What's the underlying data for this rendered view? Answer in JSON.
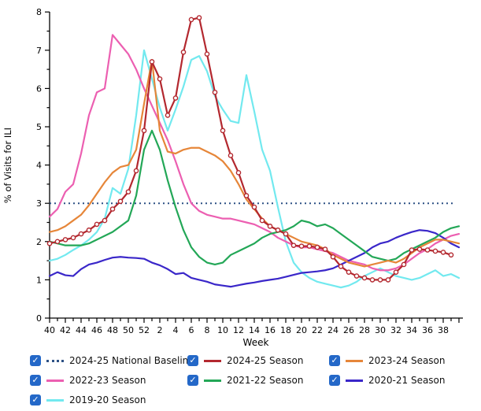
{
  "chart_data": {
    "type": "line",
    "title": "",
    "xlabel": "Week",
    "ylabel": "% of Visits for ILI",
    "ylim": [
      0,
      8
    ],
    "y_ticks": [
      0,
      1,
      2,
      3,
      4,
      5,
      6,
      7,
      8
    ],
    "grid": false,
    "legend_position": "bottom",
    "x_weeks": [
      40,
      41,
      42,
      43,
      44,
      45,
      46,
      47,
      48,
      49,
      50,
      51,
      52,
      1,
      2,
      3,
      4,
      5,
      6,
      7,
      8,
      9,
      10,
      11,
      12,
      13,
      14,
      15,
      16,
      17,
      18,
      19,
      20,
      21,
      22,
      23,
      24,
      25,
      26,
      27,
      28,
      29,
      30,
      31,
      32,
      33,
      34,
      35,
      36,
      37,
      38,
      39,
      40
    ],
    "x_tick_labels_shown": [
      "40",
      "42",
      "44",
      "46",
      "48",
      "50",
      "52",
      "2",
      "4",
      "6",
      "8",
      "10",
      "12",
      "14",
      "16",
      "18",
      "20",
      "22",
      "24",
      "26",
      "28",
      "30",
      "32",
      "34",
      "36",
      "38"
    ],
    "baseline": {
      "label": "2024-25 National Baseline",
      "value": 3,
      "color": "#2d5185",
      "style": "dotted"
    },
    "series": [
      {
        "name": "2019-20 Season",
        "color": "#72e9ef",
        "marker": "none",
        "values": [
          1.5,
          1.55,
          1.65,
          1.78,
          1.9,
          2.05,
          2.25,
          2.6,
          3.4,
          3.25,
          3.9,
          5.3,
          7.0,
          6.25,
          5.5,
          4.9,
          5.45,
          6.05,
          6.75,
          6.85,
          6.45,
          5.8,
          5.45,
          5.15,
          5.1,
          6.35,
          5.4,
          4.4,
          3.85,
          2.9,
          2.0,
          1.45,
          1.2,
          1.05,
          0.95,
          0.9,
          0.85,
          0.8,
          0.85,
          0.95,
          1.1,
          1.2,
          1.3,
          1.2,
          1.1,
          1.05,
          1.0,
          1.05,
          1.15,
          1.25,
          1.1,
          1.15,
          1.05
        ]
      },
      {
        "name": "2022-23 Season",
        "color": "#ec5fb1",
        "marker": "none",
        "values": [
          2.65,
          2.85,
          3.3,
          3.5,
          4.3,
          5.3,
          5.9,
          6.0,
          7.4,
          7.15,
          6.9,
          6.5,
          6.0,
          5.55,
          5.1,
          4.65,
          4.1,
          3.5,
          3.0,
          2.8,
          2.7,
          2.65,
          2.6,
          2.6,
          2.55,
          2.5,
          2.45,
          2.35,
          2.25,
          2.1,
          2.0,
          1.9,
          1.85,
          1.85,
          1.8,
          1.75,
          1.7,
          1.6,
          1.5,
          1.45,
          1.4,
          1.3,
          1.25,
          1.25,
          1.3,
          1.4,
          1.55,
          1.7,
          1.8,
          1.95,
          2.05,
          2.15,
          2.2
        ]
      },
      {
        "name": "2020-21 Season",
        "color": "#3a27c9",
        "marker": "none",
        "values": [
          1.1,
          1.2,
          1.12,
          1.1,
          1.28,
          1.4,
          1.45,
          1.52,
          1.58,
          1.6,
          1.58,
          1.57,
          1.55,
          1.45,
          1.38,
          1.28,
          1.15,
          1.18,
          1.05,
          1.0,
          0.95,
          0.88,
          0.85,
          0.82,
          0.86,
          0.9,
          0.93,
          0.97,
          1.0,
          1.03,
          1.08,
          1.13,
          1.18,
          1.2,
          1.22,
          1.25,
          1.3,
          1.4,
          1.5,
          1.6,
          1.7,
          1.85,
          1.95,
          2.0,
          2.1,
          2.18,
          2.25,
          2.3,
          2.28,
          2.22,
          2.1,
          1.95,
          1.85
        ]
      },
      {
        "name": "2021-22 Season",
        "color": "#23a757",
        "marker": "none",
        "values": [
          2.0,
          1.95,
          1.9,
          1.9,
          1.9,
          1.95,
          2.05,
          2.15,
          2.25,
          2.4,
          2.55,
          3.2,
          4.4,
          4.9,
          4.4,
          3.6,
          2.9,
          2.3,
          1.85,
          1.6,
          1.45,
          1.4,
          1.45,
          1.65,
          1.75,
          1.85,
          1.95,
          2.1,
          2.2,
          2.25,
          2.3,
          2.4,
          2.55,
          2.5,
          2.4,
          2.45,
          2.35,
          2.2,
          2.05,
          1.9,
          1.75,
          1.6,
          1.55,
          1.5,
          1.55,
          1.7,
          1.8,
          1.9,
          2.0,
          2.1,
          2.25,
          2.35,
          2.4
        ]
      },
      {
        "name": "2023-24 Season",
        "color": "#e68639",
        "marker": "none",
        "values": [
          2.25,
          2.3,
          2.4,
          2.55,
          2.7,
          2.95,
          3.25,
          3.55,
          3.8,
          3.95,
          4.0,
          4.4,
          5.6,
          6.75,
          4.9,
          4.35,
          4.3,
          4.4,
          4.45,
          4.45,
          4.35,
          4.25,
          4.1,
          3.85,
          3.5,
          3.1,
          2.85,
          2.6,
          2.4,
          2.3,
          2.2,
          2.1,
          2.0,
          1.95,
          1.9,
          1.8,
          1.65,
          1.55,
          1.45,
          1.4,
          1.35,
          1.4,
          1.45,
          1.5,
          1.45,
          1.55,
          1.7,
          1.85,
          1.95,
          2.05,
          2.05,
          2.0,
          1.95
        ]
      },
      {
        "name": "2024-25 Season",
        "color": "#b3282f",
        "marker": "circle",
        "values": [
          1.95,
          2.0,
          2.05,
          2.1,
          2.2,
          2.3,
          2.45,
          2.55,
          2.85,
          3.05,
          3.3,
          3.85,
          4.9,
          6.7,
          6.25,
          5.3,
          5.75,
          6.95,
          7.8,
          7.85,
          6.9,
          5.9,
          4.9,
          4.25,
          3.8,
          3.2,
          2.9,
          2.55,
          2.4,
          2.3,
          2.2,
          1.9,
          1.88,
          1.88,
          1.85,
          1.8,
          1.6,
          1.35,
          1.2,
          1.1,
          1.05,
          1.0,
          1.0,
          1.0,
          1.2,
          1.4,
          1.78,
          1.8,
          1.78,
          1.75,
          1.72,
          1.65
        ]
      }
    ],
    "legend": {
      "columns": 3,
      "items": [
        {
          "label": "2024-25 National Baseline",
          "color": "#2d5185",
          "style": "dotted",
          "checked": true
        },
        {
          "label": "2024-25 Season",
          "color": "#b3282f",
          "style": "solid",
          "checked": true
        },
        {
          "label": "2023-24 Season",
          "color": "#e68639",
          "style": "solid",
          "checked": true
        },
        {
          "label": "2022-23 Season",
          "color": "#ec5fb1",
          "style": "solid",
          "checked": true
        },
        {
          "label": "2021-22 Season",
          "color": "#23a757",
          "style": "solid",
          "checked": true
        },
        {
          "label": "2020-21 Season",
          "color": "#3a27c9",
          "style": "solid",
          "checked": true
        },
        {
          "label": "2019-20 Season",
          "color": "#72e9ef",
          "style": "solid",
          "checked": true
        }
      ],
      "checkmark": "✓"
    }
  }
}
